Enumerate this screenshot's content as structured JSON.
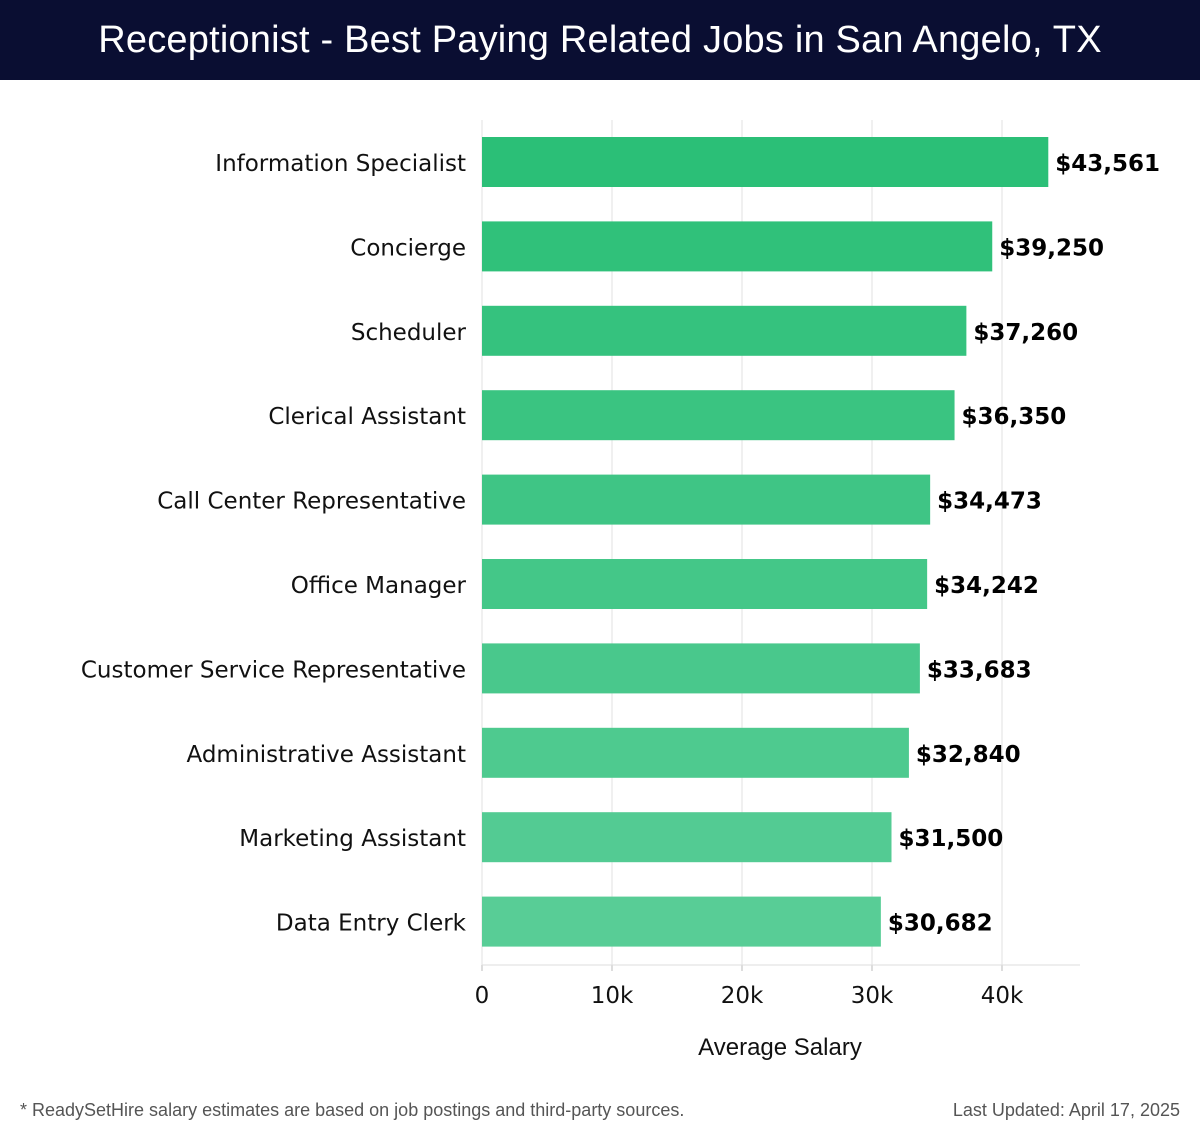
{
  "header": {
    "title": "Receptionist - Best Paying Related Jobs in San Angelo, TX"
  },
  "footer": {
    "note": "* ReadySetHire salary estimates are based on job postings and third-party sources.",
    "updated": "Last Updated: April 17, 2025"
  },
  "chart_data": {
    "type": "bar",
    "orientation": "horizontal",
    "categories": [
      "Information Specialist",
      "Concierge",
      "Scheduler",
      "Clerical Assistant",
      "Call Center Representative",
      "Office Manager",
      "Customer Service Representative",
      "Administrative Assistant",
      "Marketing Assistant",
      "Data Entry Clerk"
    ],
    "values": [
      43561,
      39250,
      37260,
      36350,
      34473,
      34242,
      33683,
      32840,
      31500,
      30682
    ],
    "value_labels": [
      "$43,561",
      "$39,250",
      "$37,260",
      "$36,350",
      "$34,473",
      "$34,242",
      "$33,683",
      "$32,840",
      "$31,500",
      "$30,682"
    ],
    "xlabel": "Average Salary",
    "ylabel": "",
    "xlim": [
      0,
      46000
    ],
    "xticks": [
      0,
      10000,
      20000,
      30000,
      40000
    ],
    "xtick_labels": [
      "0",
      "10k",
      "20k",
      "30k",
      "40k"
    ],
    "grid": true,
    "bar_color_top": "#2bbf77",
    "bar_color_bottom": "#58cd96",
    "grid_color": "#e2e2e2"
  }
}
